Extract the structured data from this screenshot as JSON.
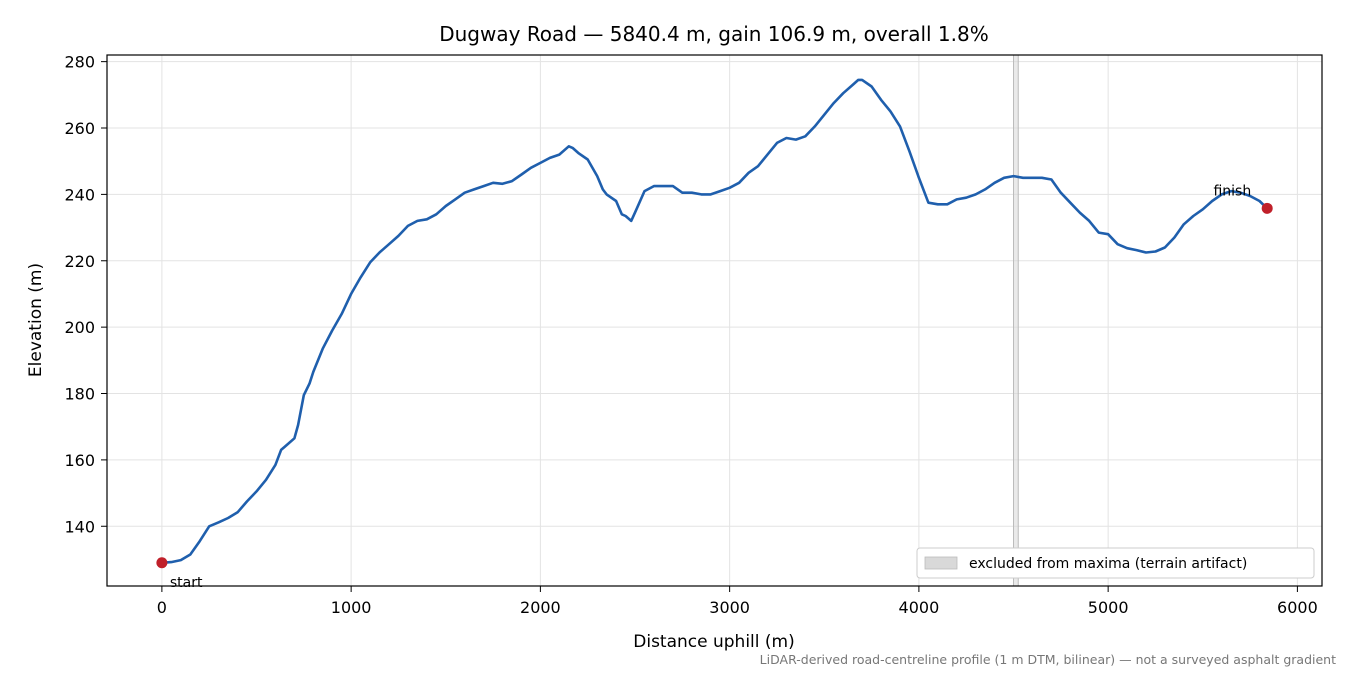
{
  "chart_data": {
    "type": "line",
    "title": "Dugway Road — 5840.4 m, gain 106.9 m, overall 1.8%",
    "xlabel": "Distance uphill (m)",
    "ylabel": "Elevation (m)",
    "xlim": [
      -290,
      6130
    ],
    "ylim": [
      122,
      282
    ],
    "xticks": [
      0,
      1000,
      2000,
      3000,
      4000,
      5000,
      6000
    ],
    "yticks": [
      140,
      160,
      180,
      200,
      220,
      240,
      260,
      280
    ],
    "grid": true,
    "line_color": "#1f5fad",
    "marker_color": "#c0202a",
    "band_color": "#d9d9d9",
    "legend": {
      "placement": "lower-right",
      "entries": [
        "excluded from maxima (terrain artifact)"
      ]
    },
    "excluded_band": {
      "x_start": 4500,
      "x_end": 4525
    },
    "markers": [
      {
        "label": "start",
        "x": 0,
        "y": 129.0
      },
      {
        "label": "finish",
        "x": 5840.4,
        "y": 235.8
      }
    ],
    "footnote": "LiDAR-derived road-centreline profile (1 m DTM, bilinear) — not a surveyed asphalt gradient",
    "series": [
      {
        "x": [
          0,
          50,
          100,
          150,
          200,
          250,
          300,
          350,
          400,
          450,
          500,
          550,
          600,
          630,
          650,
          700,
          720,
          750,
          780,
          800,
          850,
          900,
          950,
          1000,
          1050,
          1100,
          1150,
          1200,
          1250,
          1300,
          1350,
          1400,
          1450,
          1500,
          1550,
          1600,
          1650,
          1700,
          1750,
          1800,
          1850,
          1900,
          1950,
          2000,
          2050,
          2100,
          2150,
          2170,
          2200,
          2250,
          2300,
          2330,
          2350,
          2400,
          2430,
          2450,
          2480,
          2500,
          2550,
          2600,
          2650,
          2700,
          2750,
          2800,
          2850,
          2900,
          2950,
          3000,
          3050,
          3100,
          3150,
          3200,
          3250,
          3300,
          3350,
          3400,
          3450,
          3500,
          3550,
          3600,
          3650,
          3680,
          3700,
          3750,
          3800,
          3850,
          3900,
          3950,
          4000,
          4050,
          4100,
          4120,
          4150,
          4200,
          4250,
          4300,
          4350,
          4400,
          4450,
          4500,
          4550,
          4600,
          4650,
          4700,
          4750,
          4800,
          4850,
          4900,
          4950,
          5000,
          5050,
          5100,
          5150,
          5200,
          5250,
          5300,
          5350,
          5400,
          5450,
          5500,
          5550,
          5600,
          5650,
          5700,
          5750,
          5800,
          5840
        ],
        "y": [
          129.0,
          129.2,
          129.8,
          131.5,
          135.5,
          140.0,
          141.2,
          142.5,
          144.2,
          147.5,
          150.5,
          154.0,
          158.5,
          163.0,
          164.0,
          166.5,
          170.5,
          179.5,
          183.0,
          186.5,
          193.5,
          199.0,
          204.0,
          210.0,
          215.0,
          219.5,
          222.5,
          225.0,
          227.5,
          230.5,
          232.0,
          232.5,
          234.0,
          236.5,
          238.5,
          240.5,
          241.5,
          242.5,
          243.5,
          243.2,
          244.0,
          246.0,
          248.0,
          249.5,
          251.0,
          252.0,
          254.5,
          254.0,
          252.5,
          250.5,
          245.5,
          241.5,
          240.0,
          238.0,
          234.0,
          233.5,
          232.0,
          234.5,
          241.0,
          242.5,
          242.5,
          242.5,
          240.5,
          240.5,
          240.0,
          240.0,
          241.0,
          242.0,
          243.5,
          246.5,
          248.5,
          252.0,
          255.5,
          257.0,
          256.5,
          257.5,
          260.5,
          264.0,
          267.5,
          270.5,
          273.0,
          274.5,
          274.5,
          272.5,
          268.5,
          265.0,
          260.5,
          253.0,
          245.0,
          237.5,
          237.0,
          237.0,
          237.0,
          238.5,
          239.0,
          240.0,
          241.5,
          243.5,
          245.0,
          245.5,
          245.0,
          245.0,
          245.0,
          244.5,
          240.5,
          237.5,
          234.5,
          232.0,
          228.5,
          228.0,
          225.0,
          223.8,
          223.2,
          222.5,
          222.8,
          224.0,
          227.0,
          231.0,
          233.5,
          235.5,
          238.0,
          240.0,
          241.0,
          240.5,
          239.5,
          238.0,
          235.8
        ]
      }
    ]
  }
}
